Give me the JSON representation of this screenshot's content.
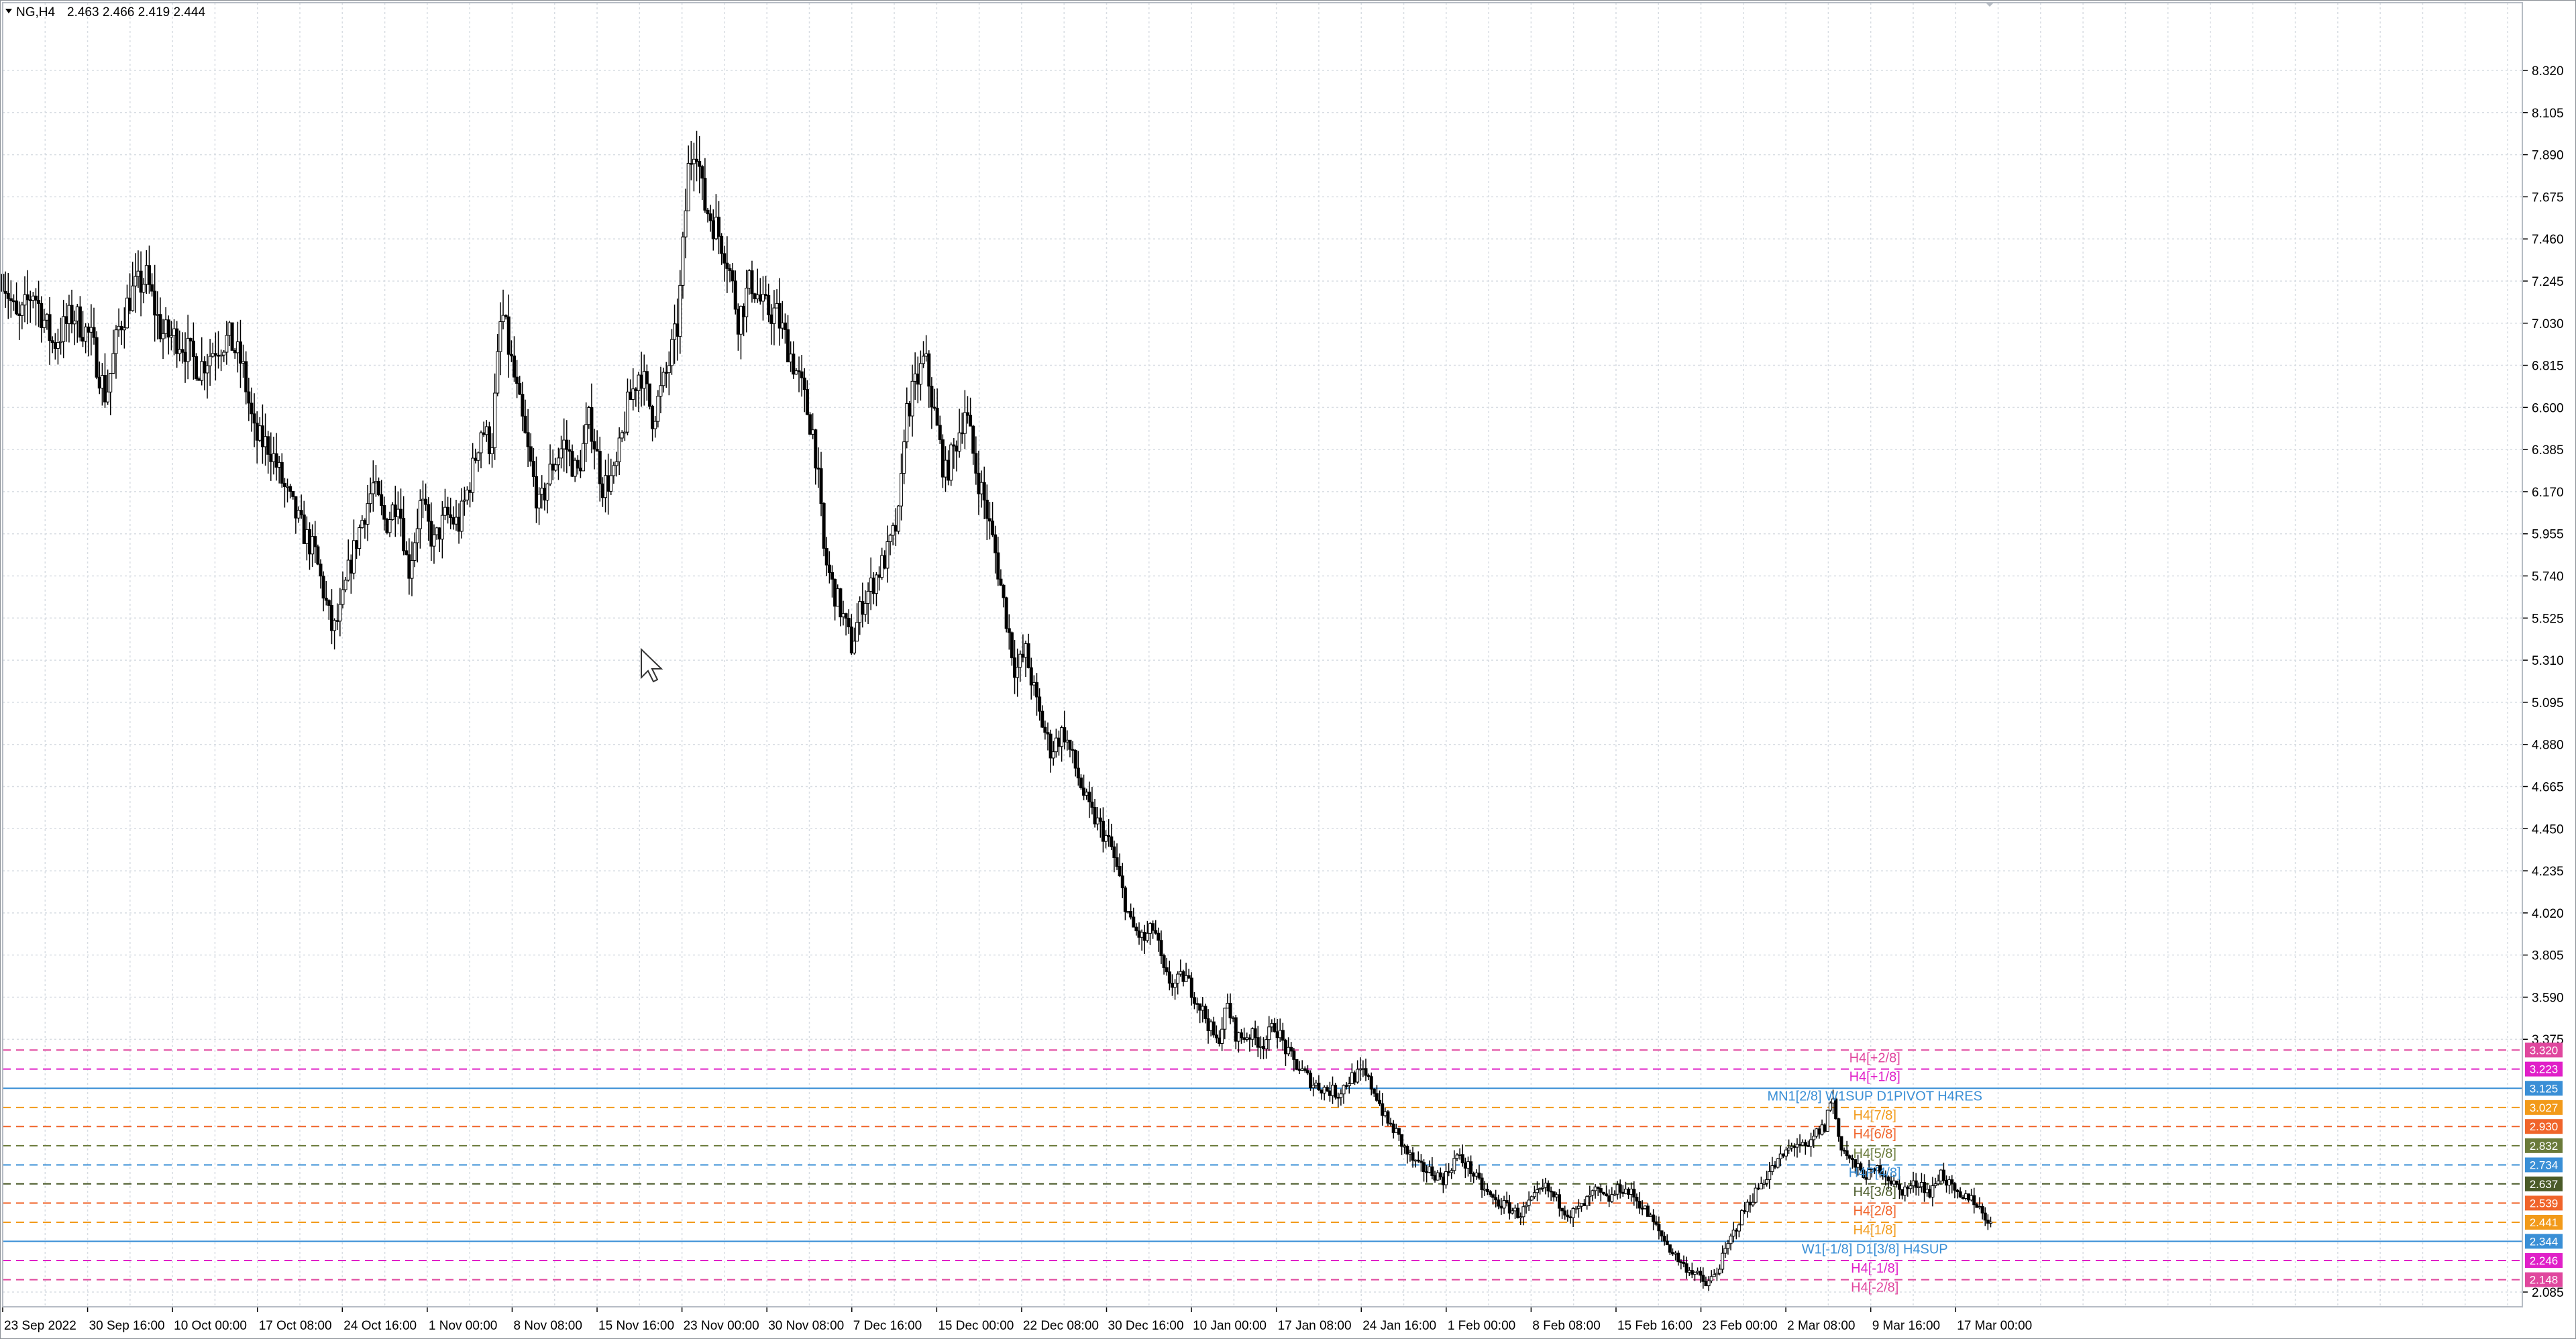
{
  "header": {
    "symbol": "NG,H4",
    "ohlc": "2.463 2.466 2.419 2.444"
  },
  "chart_data": {
    "type": "candlestick",
    "title": "NG,H4",
    "ylim": [
      2.085,
      8.32
    ],
    "y_ticks": [
      8.32,
      8.105,
      7.89,
      7.675,
      7.46,
      7.245,
      7.03,
      6.815,
      6.6,
      6.385,
      6.17,
      5.955,
      5.74,
      5.525,
      5.31,
      5.095,
      4.88,
      4.665,
      4.45,
      4.235,
      4.02,
      3.805,
      3.59,
      3.375,
      2.085
    ],
    "x_ticks": [
      "23 Sep 2022",
      "30 Sep 16:00",
      "10 Oct 00:00",
      "17 Oct 08:00",
      "24 Oct 16:00",
      "1 Nov 00:00",
      "8 Nov 08:00",
      "15 Nov 16:00",
      "23 Nov 00:00",
      "30 Nov 08:00",
      "7 Dec 16:00",
      "15 Dec 00:00",
      "22 Dec 08:00",
      "30 Dec 16:00",
      "10 Jan 00:00",
      "17 Jan 08:00",
      "24 Jan 16:00",
      "1 Feb 00:00",
      "8 Feb 08:00",
      "15 Feb 16:00",
      "23 Feb 00:00",
      "2 Mar 08:00",
      "9 Mar 16:00",
      "17 Mar 00:00"
    ],
    "x_tick_positions": [
      0.0,
      0.0337,
      0.0674,
      0.1011,
      0.1348,
      0.1685,
      0.2022,
      0.2359,
      0.2696,
      0.3033,
      0.337,
      0.3707,
      0.4044,
      0.4381,
      0.4718,
      0.5055,
      0.5392,
      0.5729,
      0.6066,
      0.6403,
      0.674,
      0.7077,
      0.7414,
      0.7751
    ],
    "price_path": [
      [
        0.0,
        7.28
      ],
      [
        0.006,
        7.02
      ],
      [
        0.012,
        7.2
      ],
      [
        0.02,
        6.92
      ],
      [
        0.028,
        7.08
      ],
      [
        0.035,
        6.95
      ],
      [
        0.041,
        6.65
      ],
      [
        0.046,
        7.0
      ],
      [
        0.051,
        7.18
      ],
      [
        0.057,
        7.26
      ],
      [
        0.063,
        6.98
      ],
      [
        0.07,
        6.95
      ],
      [
        0.078,
        6.8
      ],
      [
        0.085,
        6.92
      ],
      [
        0.09,
        6.95
      ],
      [
        0.095,
        6.82
      ],
      [
        0.1,
        6.45
      ],
      [
        0.106,
        6.4
      ],
      [
        0.112,
        6.18
      ],
      [
        0.118,
        6.0
      ],
      [
        0.124,
        5.85
      ],
      [
        0.128,
        5.62
      ],
      [
        0.131,
        5.45
      ],
      [
        0.134,
        5.55
      ],
      [
        0.137,
        5.75
      ],
      [
        0.142,
        6.0
      ],
      [
        0.147,
        6.2
      ],
      [
        0.152,
        6.0
      ],
      [
        0.157,
        6.15
      ],
      [
        0.161,
        5.75
      ],
      [
        0.166,
        6.12
      ],
      [
        0.171,
        5.9
      ],
      [
        0.176,
        6.05
      ],
      [
        0.181,
        6.0
      ],
      [
        0.186,
        6.25
      ],
      [
        0.19,
        6.5
      ],
      [
        0.194,
        6.4
      ],
      [
        0.198,
        7.1
      ],
      [
        0.203,
        6.75
      ],
      [
        0.208,
        6.4
      ],
      [
        0.213,
        6.08
      ],
      [
        0.218,
        6.3
      ],
      [
        0.223,
        6.42
      ],
      [
        0.228,
        6.25
      ],
      [
        0.233,
        6.55
      ],
      [
        0.238,
        6.2
      ],
      [
        0.243,
        6.25
      ],
      [
        0.248,
        6.6
      ],
      [
        0.253,
        6.8
      ],
      [
        0.258,
        6.55
      ],
      [
        0.263,
        6.75
      ],
      [
        0.268,
        7.02
      ],
      [
        0.272,
        7.8
      ],
      [
        0.275,
        8.0
      ],
      [
        0.278,
        7.65
      ],
      [
        0.282,
        7.55
      ],
      [
        0.287,
        7.4
      ],
      [
        0.292,
        7.05
      ],
      [
        0.297,
        7.25
      ],
      [
        0.302,
        7.1
      ],
      [
        0.307,
        7.08
      ],
      [
        0.312,
        6.9
      ],
      [
        0.317,
        6.7
      ],
      [
        0.322,
        6.45
      ],
      [
        0.324,
        6.18
      ],
      [
        0.326,
        5.85
      ],
      [
        0.329,
        5.7
      ],
      [
        0.333,
        5.55
      ],
      [
        0.337,
        5.38
      ],
      [
        0.341,
        5.6
      ],
      [
        0.346,
        5.72
      ],
      [
        0.351,
        5.85
      ],
      [
        0.356,
        6.05
      ],
      [
        0.358,
        6.55
      ],
      [
        0.362,
        6.7
      ],
      [
        0.366,
        6.85
      ],
      [
        0.37,
        6.55
      ],
      [
        0.374,
        6.25
      ],
      [
        0.378,
        6.4
      ],
      [
        0.382,
        6.6
      ],
      [
        0.386,
        6.3
      ],
      [
        0.39,
        6.1
      ],
      [
        0.394,
        5.85
      ],
      [
        0.398,
        5.55
      ],
      [
        0.402,
        5.25
      ],
      [
        0.406,
        5.35
      ],
      [
        0.411,
        5.05
      ],
      [
        0.416,
        4.85
      ],
      [
        0.421,
        4.95
      ],
      [
        0.426,
        4.75
      ],
      [
        0.431,
        4.55
      ],
      [
        0.436,
        4.45
      ],
      [
        0.44,
        4.35
      ],
      [
        0.444,
        4.15
      ],
      [
        0.448,
        3.95
      ],
      [
        0.453,
        3.88
      ],
      [
        0.457,
        3.95
      ],
      [
        0.461,
        3.7
      ],
      [
        0.465,
        3.65
      ],
      [
        0.469,
        3.7
      ],
      [
        0.473,
        3.6
      ],
      [
        0.477,
        3.5
      ],
      [
        0.482,
        3.35
      ],
      [
        0.486,
        3.55
      ],
      [
        0.49,
        3.38
      ],
      [
        0.495,
        3.4
      ],
      [
        0.5,
        3.35
      ],
      [
        0.505,
        3.45
      ],
      [
        0.51,
        3.3
      ],
      [
        0.515,
        3.22
      ],
      [
        0.52,
        3.15
      ],
      [
        0.525,
        3.12
      ],
      [
        0.53,
        3.1
      ],
      [
        0.535,
        3.18
      ],
      [
        0.54,
        3.2
      ],
      [
        0.545,
        3.1
      ],
      [
        0.549,
        2.96
      ],
      [
        0.553,
        2.9
      ],
      [
        0.557,
        2.8
      ],
      [
        0.562,
        2.72
      ],
      [
        0.567,
        2.7
      ],
      [
        0.572,
        2.66
      ],
      [
        0.577,
        2.78
      ],
      [
        0.582,
        2.72
      ],
      [
        0.587,
        2.62
      ],
      [
        0.592,
        2.55
      ],
      [
        0.597,
        2.52
      ],
      [
        0.602,
        2.48
      ],
      [
        0.607,
        2.55
      ],
      [
        0.612,
        2.62
      ],
      [
        0.617,
        2.55
      ],
      [
        0.622,
        2.48
      ],
      [
        0.627,
        2.52
      ],
      [
        0.632,
        2.6
      ],
      [
        0.637,
        2.55
      ],
      [
        0.642,
        2.62
      ],
      [
        0.647,
        2.58
      ],
      [
        0.652,
        2.5
      ],
      [
        0.657,
        2.4
      ],
      [
        0.662,
        2.3
      ],
      [
        0.667,
        2.22
      ],
      [
        0.672,
        2.18
      ],
      [
        0.676,
        2.12
      ],
      [
        0.68,
        2.18
      ],
      [
        0.684,
        2.3
      ],
      [
        0.688,
        2.42
      ],
      [
        0.692,
        2.52
      ],
      [
        0.696,
        2.6
      ],
      [
        0.7,
        2.68
      ],
      [
        0.704,
        2.74
      ],
      [
        0.708,
        2.8
      ],
      [
        0.712,
        2.85
      ],
      [
        0.716,
        2.8
      ],
      [
        0.72,
        2.9
      ],
      [
        0.723,
        2.92
      ],
      [
        0.726,
        3.1
      ],
      [
        0.729,
        2.85
      ],
      [
        0.733,
        2.76
      ],
      [
        0.737,
        2.7
      ],
      [
        0.741,
        2.68
      ],
      [
        0.745,
        2.72
      ],
      [
        0.749,
        2.66
      ],
      [
        0.753,
        2.6
      ],
      [
        0.757,
        2.62
      ],
      [
        0.761,
        2.65
      ],
      [
        0.765,
        2.58
      ],
      [
        0.769,
        2.7
      ],
      [
        0.773,
        2.62
      ],
      [
        0.777,
        2.55
      ],
      [
        0.781,
        2.58
      ],
      [
        0.785,
        2.5
      ],
      [
        0.789,
        2.44
      ]
    ],
    "levels": [
      {
        "name": "H4[+2/8]",
        "value": 3.32,
        "value_label": "3.320",
        "color": "#e0479e",
        "style": "dash"
      },
      {
        "name": "H4[+1/8]",
        "value": 3.223,
        "value_label": "3.223",
        "color": "#e020c8",
        "style": "dash"
      },
      {
        "name": "MN1[2/8] W1SUP D1PIVOT H4RES",
        "value": 3.125,
        "value_label": "3.125",
        "color": "#3a8fd6",
        "style": "solid"
      },
      {
        "name": "H4[7/8]",
        "value": 3.027,
        "value_label": "3.027",
        "color": "#f29a1a",
        "style": "dash"
      },
      {
        "name": "H4[6/8]",
        "value": 2.93,
        "value_label": "2.930",
        "color": "#f0642a",
        "style": "dash"
      },
      {
        "name": "H4[5/8]",
        "value": 2.832,
        "value_label": "2.832",
        "color": "#6a7a3a",
        "style": "dash"
      },
      {
        "name": "H4P[4/8]",
        "value": 2.734,
        "value_label": "2.734",
        "color": "#3a8fd6",
        "style": "dash"
      },
      {
        "name": "H4[3/8]",
        "value": 2.637,
        "value_label": "2.637",
        "color": "#4a5a28",
        "style": "dash"
      },
      {
        "name": "H4[2/8]",
        "value": 2.539,
        "value_label": "2.539",
        "color": "#f0642a",
        "style": "dash"
      },
      {
        "name": "H4[1/8]",
        "value": 2.441,
        "value_label": "2.441",
        "color": "#f29a1a",
        "style": "dash"
      },
      {
        "name": "W1[-1/8] D1[3/8] H4SUP",
        "value": 2.344,
        "value_label": "2.344",
        "color": "#3a8fd6",
        "style": "solid"
      },
      {
        "name": "H4[-1/8]",
        "value": 2.246,
        "value_label": "2.246",
        "color": "#e020c8",
        "style": "dash"
      },
      {
        "name": "H4[-2/8]",
        "value": 2.148,
        "value_label": "2.148",
        "color": "#e0479e",
        "style": "dash"
      }
    ],
    "grid": true,
    "colors": {
      "price": "#000000",
      "grid": "#d8dde3",
      "background": "#ffffff"
    }
  }
}
